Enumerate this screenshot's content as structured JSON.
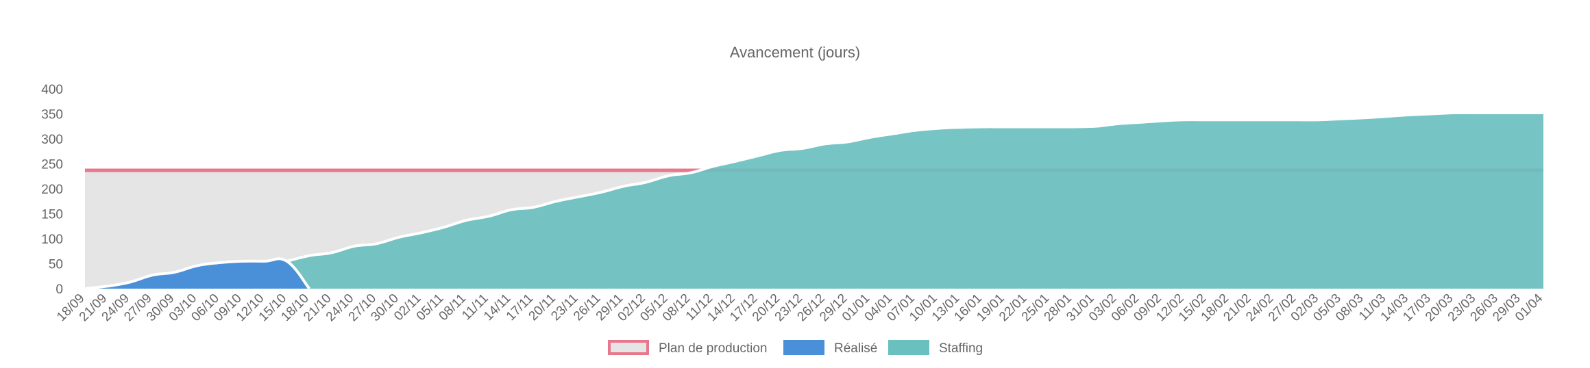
{
  "chart_data": {
    "type": "area",
    "title": "Avancement (jours)",
    "xlabel": "",
    "ylabel": "",
    "ylim": [
      0,
      400
    ],
    "yticks": [
      0,
      50,
      100,
      150,
      200,
      250,
      300,
      350,
      400
    ],
    "grid": false,
    "legend_position": "bottom",
    "categories": [
      "18/09",
      "21/09",
      "24/09",
      "27/09",
      "30/09",
      "03/10",
      "06/10",
      "09/10",
      "12/10",
      "15/10",
      "18/10",
      "21/10",
      "24/10",
      "27/10",
      "30/10",
      "02/11",
      "05/11",
      "08/11",
      "11/11",
      "14/11",
      "17/11",
      "20/11",
      "23/11",
      "26/11",
      "29/11",
      "02/12",
      "05/12",
      "08/12",
      "11/12",
      "14/12",
      "17/12",
      "20/12",
      "23/12",
      "26/12",
      "29/12",
      "01/01",
      "04/01",
      "07/01",
      "10/01",
      "13/01",
      "16/01",
      "19/01",
      "22/01",
      "25/01",
      "28/01",
      "31/01",
      "03/02",
      "06/02",
      "09/02",
      "12/02",
      "15/02",
      "18/02",
      "21/02",
      "24/02",
      "27/02",
      "02/03",
      "05/03",
      "08/03",
      "11/03",
      "14/03",
      "17/03",
      "20/03",
      "23/03",
      "26/03",
      "29/03",
      "01/04"
    ],
    "series": [
      {
        "name": "Plan de production",
        "fill": "#e5e5e5",
        "stroke": "#e8768d",
        "values": [
          237,
          237,
          237,
          237,
          237,
          237,
          237,
          237,
          237,
          237,
          237,
          237,
          237,
          237,
          237,
          237,
          237,
          237,
          237,
          237,
          237,
          237,
          237,
          237,
          237,
          237,
          237,
          237,
          237,
          237,
          237,
          237,
          237,
          237,
          237,
          237,
          237,
          237,
          237,
          237,
          237,
          237,
          237,
          237,
          237,
          237,
          237,
          237,
          237,
          237,
          237,
          237,
          237,
          237,
          237,
          237,
          237,
          237,
          237,
          237,
          237,
          237,
          237,
          237,
          237,
          237
        ]
      },
      {
        "name": "Réalisé",
        "fill": "#4a90d9",
        "stroke": "#ffffff",
        "values": [
          0,
          5,
          13,
          27,
          33,
          46,
          52,
          55,
          55,
          55,
          0,
          null,
          null,
          null,
          null,
          null,
          null,
          null,
          null,
          null,
          null,
          null,
          null,
          null,
          null,
          null,
          null,
          null,
          null,
          null,
          null,
          null,
          null,
          null,
          null,
          null,
          null,
          null,
          null,
          null,
          null,
          null,
          null,
          null,
          null,
          null,
          null,
          null,
          null,
          null,
          null,
          null,
          null,
          null,
          null,
          null,
          null,
          null,
          null,
          null,
          null,
          null,
          null,
          null,
          null,
          null
        ]
      },
      {
        "name": "Staffing",
        "fill": "#6abfbf",
        "stroke": "#ffffff",
        "values": [
          null,
          null,
          null,
          null,
          null,
          null,
          null,
          null,
          null,
          55,
          66,
          72,
          85,
          90,
          103,
          112,
          123,
          137,
          145,
          158,
          163,
          175,
          184,
          193,
          205,
          213,
          226,
          232,
          245,
          255,
          266,
          277,
          281,
          290,
          294,
          303,
          310,
          317,
          321,
          323,
          324,
          324,
          324,
          324,
          324,
          325,
          330,
          333,
          336,
          338,
          338,
          338,
          338,
          338,
          338,
          338,
          340,
          342,
          345,
          348,
          350,
          352,
          352,
          352,
          352,
          352
        ]
      }
    ]
  }
}
